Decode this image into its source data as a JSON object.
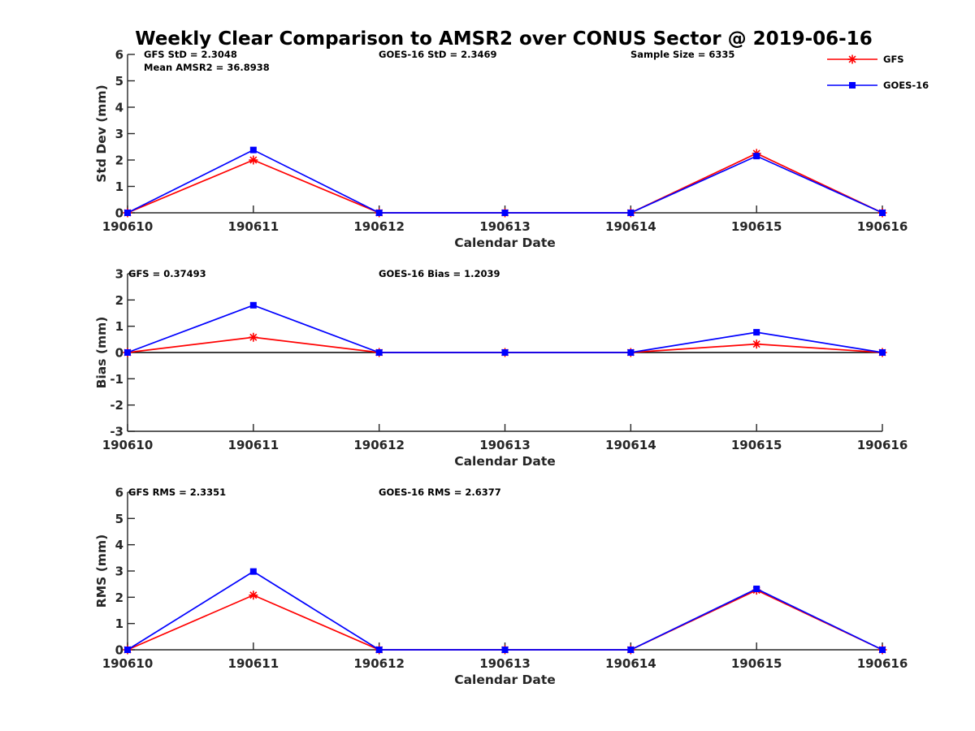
{
  "chart_data": {
    "title": "Weekly Clear Comparison to AMSR2 over CONUS Sector @ 2019-06-16",
    "legend": {
      "placement": "top-right",
      "entries": [
        {
          "name": "GFS",
          "color": "#ff0000",
          "marker": "asterisk"
        },
        {
          "name": "GOES-16",
          "color": "#0000ff",
          "marker": "square"
        }
      ]
    },
    "panels": [
      {
        "type": "line",
        "xlabel": "Calendar Date",
        "ylabel": "Std Dev (mm)",
        "categories": [
          "190610",
          "190611",
          "190612",
          "190613",
          "190614",
          "190615",
          "190616"
        ],
        "ylim": [
          0,
          6
        ],
        "yticks": [
          0,
          1,
          2,
          3,
          4,
          5,
          6
        ],
        "zero_line": false,
        "annotations": {
          "left": "GFS StD = 2.3048",
          "left2": "Mean AMSR2 = 36.8938",
          "middle": "GOES-16 StD = 2.3469",
          "right": "Sample Size = 6335"
        },
        "series": [
          {
            "name": "GFS",
            "values": [
              0,
              2.0,
              0,
              0,
              0,
              2.25,
              0
            ]
          },
          {
            "name": "GOES-16",
            "values": [
              0,
              2.38,
              0,
              0,
              0,
              2.15,
              0
            ]
          }
        ]
      },
      {
        "type": "line",
        "xlabel": "Calendar Date",
        "ylabel": "Bias (mm)",
        "categories": [
          "190610",
          "190611",
          "190612",
          "190613",
          "190614",
          "190615",
          "190616"
        ],
        "ylim": [
          -3,
          3
        ],
        "yticks": [
          -3,
          -2,
          -1,
          0,
          1,
          2,
          3
        ],
        "zero_line": true,
        "annotations": {
          "left": "GFS = 0.37493",
          "left2": "",
          "middle": "GOES-16 Bias  = 1.2039",
          "right": ""
        },
        "series": [
          {
            "name": "GFS",
            "values": [
              0,
              0.58,
              0,
              0,
              0,
              0.32,
              0
            ]
          },
          {
            "name": "GOES-16",
            "values": [
              0,
              1.8,
              0,
              0,
              0,
              0.77,
              0
            ]
          }
        ]
      },
      {
        "type": "line",
        "xlabel": "Calendar Date",
        "ylabel": "RMS (mm)",
        "categories": [
          "190610",
          "190611",
          "190612",
          "190613",
          "190614",
          "190615",
          "190616"
        ],
        "ylim": [
          0,
          6
        ],
        "yticks": [
          0,
          1,
          2,
          3,
          4,
          5,
          6
        ],
        "zero_line": false,
        "annotations": {
          "left": "GFS RMS = 2.3351",
          "left2": "",
          "middle": "GOES-16 RMS = 2.6377",
          "right": ""
        },
        "series": [
          {
            "name": "GFS",
            "values": [
              0,
              2.08,
              0,
              0,
              0,
              2.27,
              0
            ]
          },
          {
            "name": "GOES-16",
            "values": [
              0,
              2.98,
              0,
              0,
              0,
              2.32,
              0
            ]
          }
        ]
      }
    ]
  }
}
